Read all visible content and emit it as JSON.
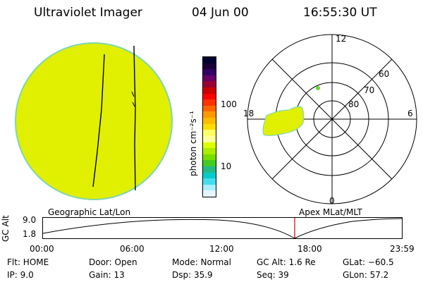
{
  "header": {
    "instrument": "Ultraviolet Imager",
    "date": "04 Jun 00",
    "time": "16:55:30 UT"
  },
  "colorbar": {
    "unit_label": "photon cm⁻²s⁻¹",
    "tick_labels": [
      "100",
      "10"
    ],
    "colors": [
      "#000033",
      "#1a0033",
      "#330066",
      "#660066",
      "#990033",
      "#cc0000",
      "#ff0000",
      "#ff3300",
      "#ff6600",
      "#ff9900",
      "#ffbb00",
      "#ffdd00",
      "#ffff66",
      "#ffff99",
      "#ddff00",
      "#aaee00",
      "#77dd00",
      "#44cc22",
      "#22bb88",
      "#00cccc",
      "#44ddee",
      "#aaeeff",
      "#e6f4ff"
    ]
  },
  "polar": {
    "mlt_labels": [
      "12",
      "18",
      "6",
      "0"
    ],
    "lat_labels": [
      "60",
      "70",
      "80"
    ]
  },
  "timeline": {
    "ylabel": "GC Alt",
    "y_labels": [
      "9.0",
      "1.8"
    ],
    "left_title": "Geographic Lat/Lon",
    "right_title": "Apex MLat/MLT",
    "x_labels": [
      "00:00",
      "06:00",
      "12:00",
      "18:00",
      "23:59"
    ],
    "current_marker_color": "#cc0000"
  },
  "info": {
    "filter": "Flt: HOME",
    "ip": "IP:  9.0",
    "door": "Door: Open",
    "gain": "Gain: 13",
    "mode": "Mode: Normal",
    "dsp": "Dsp:      35.9",
    "gc_alt": "GC Alt: 1.6 Re",
    "seq": "Seq: 39",
    "glat": "GLat: −60.5",
    "glon": "GLon:  57.2"
  }
}
